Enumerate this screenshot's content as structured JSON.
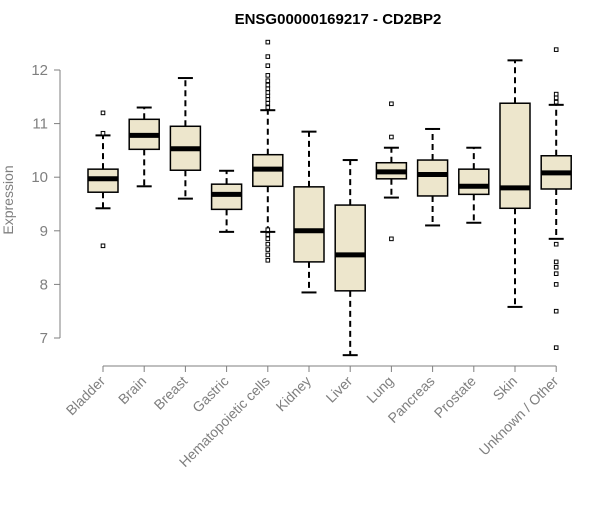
{
  "chart_data": {
    "type": "boxplot",
    "title": "ENSG00000169217 - CD2BP2",
    "ylabel": "Expression",
    "xlabel": "",
    "ylim": [
      6.5,
      12.7
    ],
    "yticks": [
      7,
      8,
      9,
      10,
      11,
      12
    ],
    "box_fill": "#ede6cc",
    "categories": [
      "Bladder",
      "Brain",
      "Breast",
      "Gastric",
      "Hematopoietic cells",
      "Kidney",
      "Liver",
      "Lung",
      "Pancreas",
      "Prostate",
      "Skin",
      "Unknown / Other"
    ],
    "boxes": [
      {
        "q1": 9.72,
        "median": 9.97,
        "q3": 10.15,
        "whisker_low": 9.42,
        "whisker_high": 10.78,
        "outliers": [
          8.72,
          10.82,
          11.2
        ]
      },
      {
        "q1": 10.52,
        "median": 10.78,
        "q3": 11.08,
        "whisker_low": 9.83,
        "whisker_high": 11.3,
        "outliers": []
      },
      {
        "q1": 10.13,
        "median": 10.53,
        "q3": 10.95,
        "whisker_low": 9.6,
        "whisker_high": 11.85,
        "outliers": []
      },
      {
        "q1": 9.4,
        "median": 9.68,
        "q3": 9.87,
        "whisker_low": 8.98,
        "whisker_high": 10.12,
        "outliers": []
      },
      {
        "q1": 9.83,
        "median": 10.15,
        "q3": 10.42,
        "whisker_low": 8.98,
        "whisker_high": 11.25,
        "outliers": [
          8.45,
          8.55,
          8.65,
          8.75,
          8.85,
          8.93,
          9.02,
          11.3,
          11.38,
          11.45,
          11.52,
          11.58,
          11.65,
          11.72,
          11.8,
          11.9,
          12.08,
          12.25,
          12.52
        ]
      },
      {
        "q1": 8.42,
        "median": 9.0,
        "q3": 9.82,
        "whisker_low": 7.85,
        "whisker_high": 10.85,
        "outliers": []
      },
      {
        "q1": 7.88,
        "median": 8.55,
        "q3": 9.48,
        "whisker_low": 6.68,
        "whisker_high": 10.32,
        "outliers": []
      },
      {
        "q1": 9.97,
        "median": 10.1,
        "q3": 10.27,
        "whisker_low": 9.62,
        "whisker_high": 10.55,
        "outliers": [
          8.85,
          10.75,
          11.37
        ]
      },
      {
        "q1": 9.65,
        "median": 10.05,
        "q3": 10.32,
        "whisker_low": 9.1,
        "whisker_high": 10.9,
        "outliers": []
      },
      {
        "q1": 9.68,
        "median": 9.83,
        "q3": 10.15,
        "whisker_low": 9.15,
        "whisker_high": 10.55,
        "outliers": []
      },
      {
        "q1": 9.42,
        "median": 9.8,
        "q3": 11.38,
        "whisker_low": 7.58,
        "whisker_high": 12.18,
        "outliers": []
      },
      {
        "q1": 9.78,
        "median": 10.08,
        "q3": 10.4,
        "whisker_low": 8.85,
        "whisker_high": 11.35,
        "outliers": [
          6.82,
          7.5,
          8.0,
          8.2,
          8.32,
          8.42,
          8.75,
          11.4,
          11.48,
          11.55,
          12.38
        ]
      }
    ]
  }
}
